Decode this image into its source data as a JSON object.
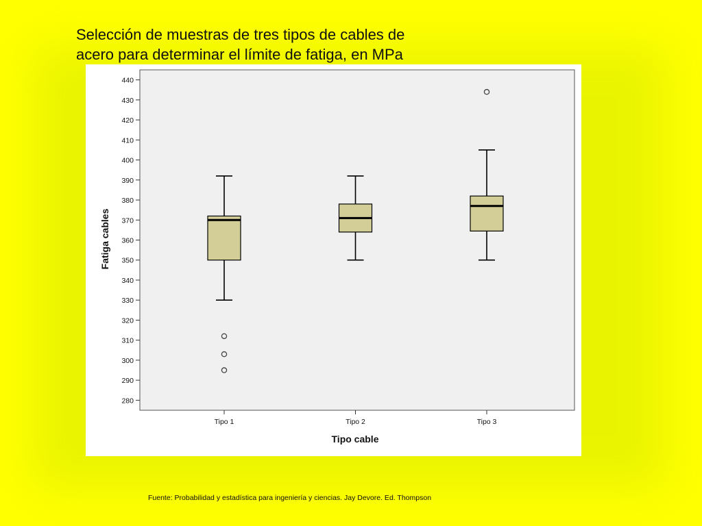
{
  "slide": {
    "title_lines": [
      "Selección de muestras de tres tipos de cables de",
      "acero para determinar el límite de fatiga, en MPa"
    ],
    "source": "Fuente: Probabilidad y estadística para ingeniería y ciencias. Jay Devore. Ed. Thompson",
    "colors": {
      "background": "#ffff00",
      "box_fill": "#d3ce98",
      "plot_bg": "#f0f0f0"
    }
  },
  "chart_data": {
    "type": "boxplot",
    "title": "",
    "xlabel": "Tipo cable",
    "ylabel": "Fatiga cables",
    "ylim": [
      275,
      445
    ],
    "yticks": [
      280,
      290,
      300,
      310,
      320,
      330,
      340,
      350,
      360,
      370,
      380,
      390,
      400,
      410,
      420,
      430,
      440
    ],
    "grid": false,
    "categories": [
      "Tipo 1",
      "Tipo 2",
      "Tipo 3"
    ],
    "boxes": [
      {
        "category": "Tipo 1",
        "whisker_low": 330,
        "q1": 350,
        "median": 370,
        "q3": 372,
        "whisker_high": 392,
        "outliers": [
          312,
          303,
          295
        ]
      },
      {
        "category": "Tipo 2",
        "whisker_low": 350,
        "q1": 364,
        "median": 371,
        "q3": 378,
        "whisker_high": 392,
        "outliers": []
      },
      {
        "category": "Tipo 3",
        "whisker_low": 350,
        "q1": 364.5,
        "median": 377,
        "q3": 382,
        "whisker_high": 405,
        "outliers": [
          434
        ]
      }
    ]
  }
}
